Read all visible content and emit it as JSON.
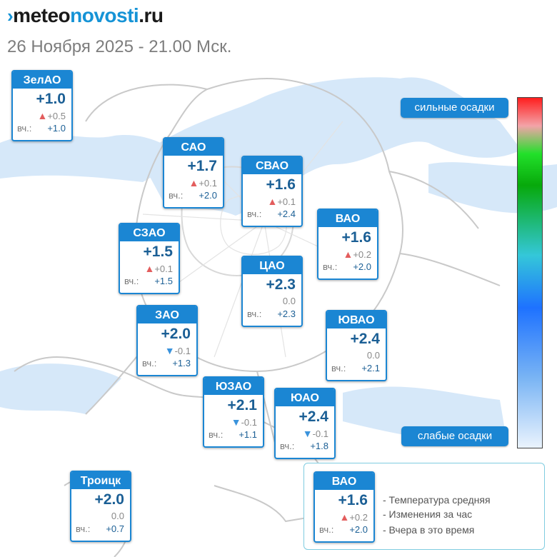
{
  "header": {
    "logo_part1": "meteo",
    "logo_part2": "novosti",
    "logo_part3": ".ru",
    "subtitle": "26 Ноября 2025 - 21.00 Мск."
  },
  "colors": {
    "card_blue": "#1b86d3",
    "rise": "#e35d5d",
    "fall": "#3a93dc",
    "value_text": "#1b5f95"
  },
  "districts": [
    {
      "name": "ЗелАО",
      "temp": "+1.0",
      "trend": "up",
      "change": "+0.5",
      "yesterday_label": "вч.:",
      "yesterday": "+1.0"
    },
    {
      "name": "САО",
      "temp": "+1.7",
      "trend": "up",
      "change": "+0.1",
      "yesterday_label": "вч.:",
      "yesterday": "+2.0"
    },
    {
      "name": "СВАО",
      "temp": "+1.6",
      "trend": "up",
      "change": "+0.1",
      "yesterday_label": "вч.:",
      "yesterday": "+2.4"
    },
    {
      "name": "ВАО",
      "temp": "+1.6",
      "trend": "up",
      "change": "+0.2",
      "yesterday_label": "вч.:",
      "yesterday": "+2.0"
    },
    {
      "name": "СЗАО",
      "temp": "+1.5",
      "trend": "up",
      "change": "+0.1",
      "yesterday_label": "вч.:",
      "yesterday": "+1.5"
    },
    {
      "name": "ЦАО",
      "temp": "+2.3",
      "trend": "none",
      "change": "0.0",
      "yesterday_label": "вч.:",
      "yesterday": "+2.3"
    },
    {
      "name": "ЗАО",
      "temp": "+2.0",
      "trend": "down",
      "change": "-0.1",
      "yesterday_label": "вч.:",
      "yesterday": "+1.3"
    },
    {
      "name": "ЮВАО",
      "temp": "+2.4",
      "trend": "none",
      "change": "0.0",
      "yesterday_label": "вч.:",
      "yesterday": "+2.1"
    },
    {
      "name": "ЮЗАО",
      "temp": "+2.1",
      "trend": "down",
      "change": "-0.1",
      "yesterday_label": "вч.:",
      "yesterday": "+1.1"
    },
    {
      "name": "ЮАО",
      "temp": "+2.4",
      "trend": "down",
      "change": "-0.1",
      "yesterday_label": "вч.:",
      "yesterday": "+1.8"
    },
    {
      "name": "Троицк",
      "temp": "+2.0",
      "trend": "none",
      "change": "0.0",
      "yesterday_label": "вч.:",
      "yesterday": "+0.7"
    }
  ],
  "precip_scale": {
    "high_label": "сильные осадки",
    "low_label": "слабые осадки"
  },
  "legend": {
    "sample": {
      "name": "ВАО",
      "temp": "+1.6",
      "trend": "up",
      "change": "+0.2",
      "yesterday_label": "вч.:",
      "yesterday": "+2.0"
    },
    "items": [
      "- Температура средняя",
      "- Изменения за час",
      "- Вчера в это время"
    ]
  }
}
